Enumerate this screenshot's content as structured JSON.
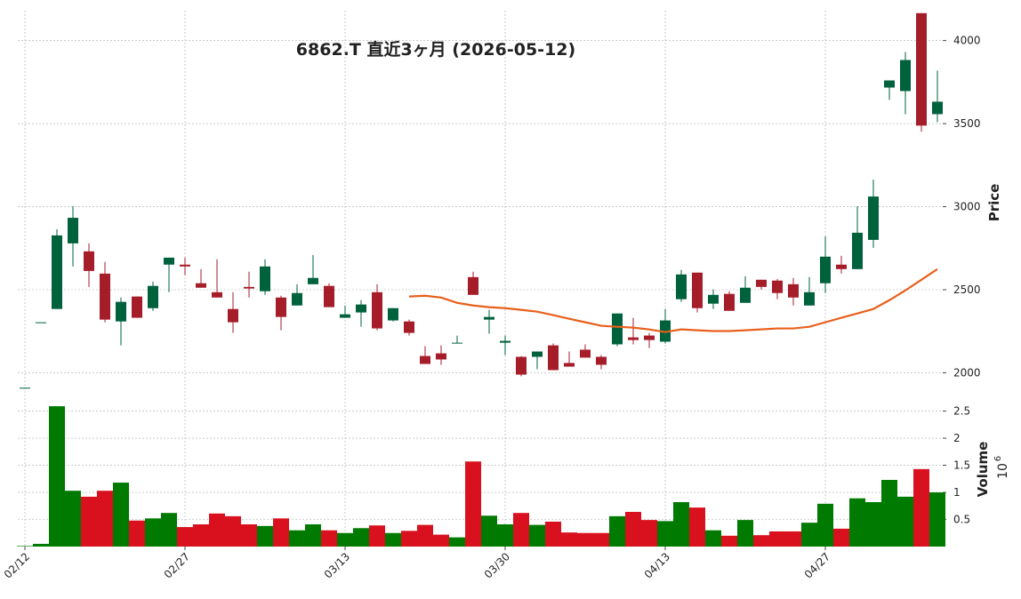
{
  "chart_data": {
    "type": "candlestick",
    "title": "6862.T  直近3ヶ月  (2026-05-12)",
    "y_label": "Price",
    "volume_label": "Volume",
    "volume_scale_base": "10",
    "volume_scale_exponent": "6",
    "categories": [
      "02/12",
      null,
      null,
      null,
      null,
      null,
      null,
      null,
      null,
      null,
      "02/27",
      null,
      null,
      null,
      null,
      null,
      null,
      null,
      null,
      null,
      "03/13",
      null,
      null,
      null,
      null,
      null,
      null,
      null,
      null,
      null,
      "03/30",
      null,
      null,
      null,
      null,
      null,
      null,
      null,
      null,
      null,
      "04/13",
      null,
      null,
      null,
      null,
      null,
      null,
      null,
      null,
      null,
      "04/27",
      null,
      null,
      null,
      null,
      null,
      null,
      null
    ],
    "open": [
      1910,
      2304,
      2384,
      2779,
      2731,
      2597,
      2309,
      2459,
      2389,
      2651,
      2651,
      2539,
      2485,
      2384,
      2517,
      2491,
      2453,
      2405,
      2533,
      2523,
      2331,
      2363,
      2485,
      2315,
      2309,
      2101,
      2117,
      2176,
      2576,
      2320,
      2181,
      2096,
      2096,
      2165,
      2059,
      2139,
      2096,
      2171,
      2213,
      2224,
      2187,
      2443,
      2603,
      2416,
      2475,
      2421,
      2560,
      2555,
      2533,
      2405,
      2539,
      2651,
      2624,
      2800,
      3717,
      3696,
      4165,
      3557
    ],
    "high": [
      1910,
      2304,
      2864,
      3003,
      2779,
      2667,
      2453,
      2459,
      2549,
      2693,
      2693,
      2624,
      2683,
      2485,
      2608,
      2683,
      2464,
      2533,
      2709,
      2539,
      2405,
      2437,
      2533,
      2389,
      2320,
      2160,
      2165,
      2224,
      2608,
      2379,
      2224,
      2101,
      2128,
      2176,
      2128,
      2171,
      2107,
      2357,
      2331,
      2240,
      2384,
      2619,
      2603,
      2501,
      2491,
      2581,
      2560,
      2565,
      2571,
      2576,
      2821,
      2704,
      3003,
      3163,
      3760,
      3931,
      4165,
      3819
    ],
    "low": [
      1910,
      2304,
      2384,
      2640,
      2517,
      2304,
      2165,
      2331,
      2373,
      2485,
      2587,
      2512,
      2453,
      2240,
      2453,
      2469,
      2256,
      2405,
      2533,
      2395,
      2331,
      2277,
      2256,
      2309,
      2224,
      2053,
      2048,
      2176,
      2469,
      2235,
      2107,
      1979,
      2021,
      2016,
      2037,
      2091,
      2021,
      2160,
      2171,
      2149,
      2176,
      2427,
      2363,
      2384,
      2373,
      2421,
      2501,
      2443,
      2405,
      2405,
      2480,
      2597,
      2624,
      2752,
      3643,
      3557,
      3451,
      3509
    ],
    "close": [
      1910,
      2304,
      2827,
      2933,
      2613,
      2320,
      2427,
      2331,
      2523,
      2693,
      2640,
      2512,
      2453,
      2304,
      2507,
      2640,
      2336,
      2480,
      2571,
      2395,
      2352,
      2411,
      2267,
      2389,
      2240,
      2053,
      2080,
      2181,
      2469,
      2336,
      2192,
      1989,
      2128,
      2016,
      2037,
      2091,
      2048,
      2357,
      2197,
      2197,
      2315,
      2592,
      2389,
      2469,
      2373,
      2512,
      2517,
      2480,
      2453,
      2485,
      2699,
      2624,
      2843,
      3061,
      3760,
      3883,
      3488,
      3632
    ],
    "volume": [
      0.01,
      0.05,
      2.59,
      1.03,
      0.92,
      1.03,
      1.18,
      0.48,
      0.52,
      0.62,
      0.36,
      0.41,
      0.61,
      0.56,
      0.41,
      0.38,
      0.52,
      0.3,
      0.41,
      0.3,
      0.25,
      0.34,
      0.39,
      0.25,
      0.29,
      0.4,
      0.22,
      0.17,
      1.57,
      0.57,
      0.41,
      0.62,
      0.4,
      0.46,
      0.26,
      0.25,
      0.25,
      0.56,
      0.64,
      0.49,
      0.47,
      0.82,
      0.72,
      0.3,
      0.2,
      0.49,
      0.21,
      0.28,
      0.28,
      0.44,
      0.79,
      0.33,
      0.89,
      0.82,
      1.23,
      0.92,
      1.43,
      1.0
    ],
    "moving_average": [
      null,
      null,
      null,
      null,
      null,
      null,
      null,
      null,
      null,
      null,
      null,
      null,
      null,
      null,
      null,
      null,
      null,
      null,
      null,
      null,
      null,
      null,
      null,
      null,
      2459,
      2464,
      2453,
      2421,
      2405,
      2395,
      2389,
      2379,
      2368,
      2347,
      2325,
      2304,
      2283,
      2277,
      2272,
      2261,
      2245,
      2261,
      2256,
      2251,
      2251,
      2256,
      2261,
      2267,
      2267,
      2277,
      2304,
      2331,
      2357,
      2384,
      2437,
      2496,
      2560,
      2624
    ],
    "up_color": "#00613d",
    "down_color": "#a61d2a",
    "volume_up_color": "#007a00",
    "volume_down_color": "#d9111e",
    "moving_average_color": "#e8601c",
    "ylim": [
      1890,
      4180
    ],
    "yticks": [
      2000,
      2500,
      3000,
      3500,
      4000
    ],
    "volume_ylim": [
      0,
      2.87
    ],
    "volume_yticks": [
      0.5,
      1.0,
      1.5,
      2.0,
      2.5
    ],
    "grid": true
  }
}
